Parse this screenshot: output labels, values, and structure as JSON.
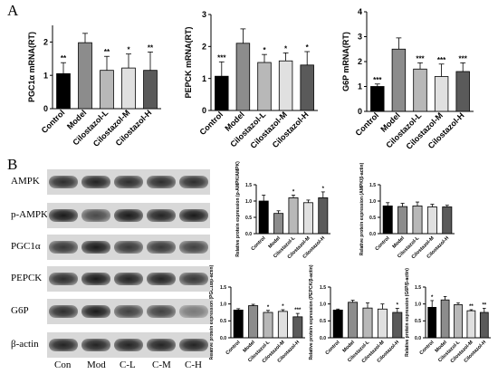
{
  "panels": {
    "a": "A",
    "b": "B"
  },
  "colors": {
    "control": "#000000",
    "model": "#8c8c8c",
    "low": "#b8b8b8",
    "mid": "#e0e0e0",
    "high": "#5a5a5a"
  },
  "chart_data": [
    {
      "type": "bar",
      "ylabel": "PGC1α mRNA(RT)",
      "categories": [
        "Control",
        "Model",
        "Cilostazol-L",
        "Cilostazol-M",
        "Cilostazol-H"
      ],
      "values": [
        1.05,
        1.98,
        1.15,
        1.22,
        1.15
      ],
      "errors": [
        0.33,
        0.28,
        0.42,
        0.42,
        0.55
      ],
      "annotations": [
        "**",
        "",
        "**",
        "*",
        "**"
      ],
      "ylim": [
        0,
        2.5
      ],
      "yticks": [
        "0",
        "1",
        "2"
      ],
      "ytick_values": [
        0,
        1,
        2
      ]
    },
    {
      "type": "bar",
      "ylabel": "PEPCK mRNA(RT)",
      "categories": [
        "Control",
        "Model",
        "Cilostazol-L",
        "Cilostazol-M",
        "Cilostazol-H"
      ],
      "values": [
        1.07,
        2.1,
        1.5,
        1.55,
        1.42
      ],
      "errors": [
        0.45,
        0.45,
        0.25,
        0.25,
        0.42
      ],
      "annotations": [
        "***",
        "",
        "*",
        "*",
        "*"
      ],
      "ylim": [
        0,
        3
      ],
      "yticks": [
        "0",
        "1",
        "2",
        "3"
      ],
      "ytick_values": [
        0,
        1,
        2,
        3
      ]
    },
    {
      "type": "bar",
      "ylabel": "G6P mRNA(RT)",
      "categories": [
        "Control",
        "Model",
        "Cilostazol-L",
        "Cilostazol-M",
        "Cilostazol-H"
      ],
      "values": [
        1.0,
        2.5,
        1.7,
        1.4,
        1.6
      ],
      "errors": [
        0.1,
        0.45,
        0.25,
        0.5,
        0.35
      ],
      "annotations": [
        "***",
        "",
        "***",
        "***",
        "***"
      ],
      "ylim": [
        0,
        4
      ],
      "yticks": [
        "0",
        "1",
        "2",
        "3",
        "4"
      ],
      "ytick_values": [
        0,
        1,
        2,
        3,
        4
      ]
    },
    {
      "type": "bar",
      "ylabel": "Relative protein expression (p-AMPK/AMPK)",
      "categories": [
        "Control",
        "Model",
        "Cilostazol-L",
        "Cilostazol-M",
        "Cilostazol-H"
      ],
      "values": [
        1.0,
        0.62,
        1.1,
        0.95,
        1.1
      ],
      "errors": [
        0.18,
        0.08,
        0.08,
        0.08,
        0.18
      ],
      "annotations": [
        "",
        "",
        "*",
        "",
        "*"
      ],
      "ylim": [
        0,
        1.5
      ],
      "yticks": [
        "0.0",
        "0.5",
        "1.0",
        "1.5"
      ],
      "ytick_values": [
        0,
        0.5,
        1.0,
        1.5
      ]
    },
    {
      "type": "bar",
      "ylabel": "Relative protein expression (AMPK/β-actin)",
      "categories": [
        "Control",
        "Model",
        "Cilostazol-L",
        "Cilostazol-M",
        "Cilostazol-H"
      ],
      "values": [
        0.85,
        0.83,
        0.85,
        0.82,
        0.82
      ],
      "errors": [
        0.1,
        0.1,
        0.12,
        0.08,
        0.05
      ],
      "annotations": [
        "",
        "",
        "",
        "",
        ""
      ],
      "ylim": [
        0,
        1.5
      ],
      "yticks": [
        "0.0",
        "0.5",
        "1.0",
        "1.5"
      ],
      "ytick_values": [
        0,
        0.5,
        1.0,
        1.5
      ]
    },
    {
      "type": "bar",
      "ylabel": "Relative protein expression (PGC1α/β-actin)",
      "categories": [
        "Control",
        "Model",
        "Cilostazol-L",
        "Cilostazol-M",
        "Cilostazol-H"
      ],
      "values": [
        0.82,
        0.95,
        0.75,
        0.78,
        0.62
      ],
      "errors": [
        0.04,
        0.04,
        0.06,
        0.05,
        0.1
      ],
      "annotations": [
        "",
        "",
        "*",
        "*",
        "***"
      ],
      "ylim": [
        0,
        1.5
      ],
      "yticks": [
        "0.0",
        "0.5",
        "1.0",
        "1.5"
      ],
      "ytick_values": [
        0,
        0.5,
        1.0,
        1.5
      ]
    },
    {
      "type": "bar",
      "ylabel": "Relative protein expression (PEPCK/β-actin)",
      "categories": [
        "Control",
        "Model",
        "Cilostazol-L",
        "Cilostazol-M",
        "Cilostazol-H"
      ],
      "values": [
        0.82,
        1.05,
        0.88,
        0.85,
        0.75
      ],
      "errors": [
        0.03,
        0.06,
        0.15,
        0.15,
        0.12
      ],
      "annotations": [
        "",
        "",
        "",
        "",
        "*"
      ],
      "ylim": [
        0,
        1.5
      ],
      "yticks": [
        "0.0",
        "0.5",
        "1.0",
        "1.5"
      ],
      "ytick_values": [
        0,
        0.5,
        1.0,
        1.5
      ]
    },
    {
      "type": "bar",
      "ylabel": "Relative protein expression (G6P/β-actin)",
      "categories": [
        "Control",
        "Model",
        "Cilostazol-L",
        "Cilostazol-M",
        "Cilostazol-H"
      ],
      "values": [
        0.9,
        1.12,
        0.98,
        0.8,
        0.75
      ],
      "errors": [
        0.2,
        0.1,
        0.05,
        0.03,
        0.12
      ],
      "annotations": [
        "*",
        "",
        "",
        "**",
        "**"
      ],
      "ylim": [
        0,
        1.5
      ],
      "yticks": [
        "0.0",
        "0.5",
        "1.0",
        "1.5"
      ],
      "ytick_values": [
        0,
        0.5,
        1.0,
        1.5
      ]
    }
  ],
  "blot": {
    "rows": [
      {
        "label": "AMPK",
        "intensity": [
          0.9,
          0.95,
          0.9,
          0.9,
          0.9
        ]
      },
      {
        "label": "p-AMPK",
        "intensity": [
          1.0,
          0.75,
          1.0,
          0.95,
          1.0
        ]
      },
      {
        "label": "PGC1α",
        "intensity": [
          0.85,
          1.0,
          0.85,
          0.85,
          0.8
        ]
      },
      {
        "label": "PEPCK",
        "intensity": [
          0.9,
          1.0,
          0.95,
          0.95,
          0.85
        ]
      },
      {
        "label": "G6P",
        "intensity": [
          0.9,
          1.0,
          0.8,
          0.8,
          0.5
        ]
      },
      {
        "label": "β-actin",
        "intensity": [
          0.95,
          0.95,
          0.95,
          0.95,
          0.95
        ]
      }
    ],
    "lanes": [
      "Con",
      "Mod",
      "C-L",
      "C-M",
      "C-H"
    ]
  }
}
